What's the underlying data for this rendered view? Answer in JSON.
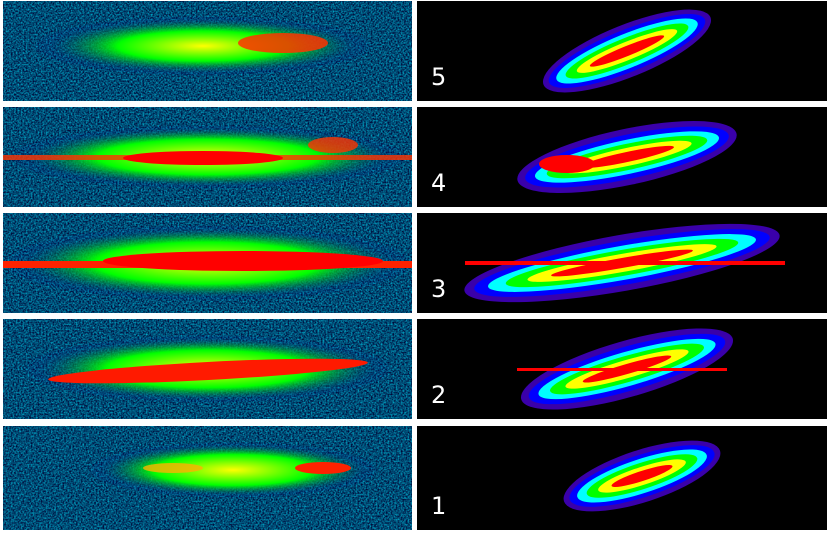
{
  "rows": [
    {
      "label": "5"
    },
    {
      "label": "4"
    },
    {
      "label": "3"
    },
    {
      "label": "2"
    },
    {
      "label": "1"
    }
  ],
  "colors": {
    "background": "#000000",
    "separator": "#ffffff",
    "label": "#ffffff",
    "colormap": [
      "#00008f",
      "#0000ff",
      "#00ffff",
      "#00ff00",
      "#ffff00",
      "#ff0000"
    ]
  }
}
